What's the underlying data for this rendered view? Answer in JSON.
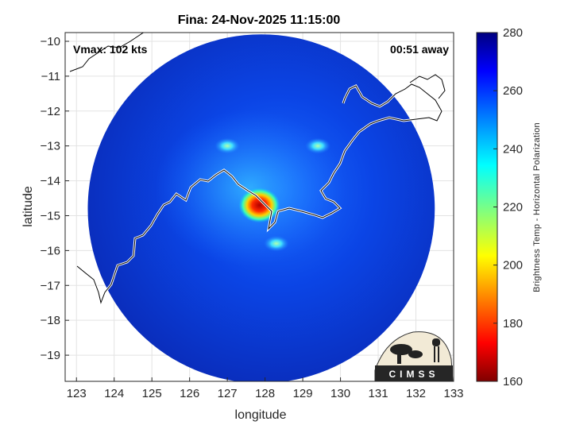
{
  "chart_data": {
    "type": "heatmap",
    "title": "Fina: 24-Nov-2025 11:15:00",
    "xlabel": "longitude",
    "ylabel": "latitude",
    "xlim": [
      122.7,
      133
    ],
    "ylim": [
      -19.75,
      -9.75
    ],
    "xticks": [
      123,
      124,
      125,
      126,
      127,
      128,
      129,
      130,
      131,
      132,
      133
    ],
    "yticks": [
      -10,
      -11,
      -12,
      -13,
      -14,
      -15,
      -16,
      -17,
      -18,
      -19
    ],
    "grid": true,
    "annotation_left": "Vmax: 102 kts",
    "annotation_right": "00:51 away",
    "colorbar": {
      "label": "Brightness Temp - Horizontal Polarization",
      "min": 160,
      "max": 280,
      "ticks": [
        160,
        180,
        200,
        220,
        240,
        260,
        280
      ],
      "colormap": "jet"
    },
    "swath": {
      "center_lon": 127.9,
      "center_lat": -14.8,
      "radius_lon": 4.6,
      "radius_lat": 5.0
    },
    "features": [
      {
        "name": "eyewall-core",
        "lon": 127.85,
        "lat": -14.7,
        "value": 172
      },
      {
        "name": "inner-band-north",
        "lon": 127.0,
        "lat": -13.0,
        "value": 238
      },
      {
        "name": "inner-band-ne",
        "lon": 129.4,
        "lat": -13.0,
        "value": 236
      },
      {
        "name": "spiral-band-south",
        "lon": 128.3,
        "lat": -15.8,
        "value": 240
      }
    ],
    "logo": "CIMSS"
  }
}
